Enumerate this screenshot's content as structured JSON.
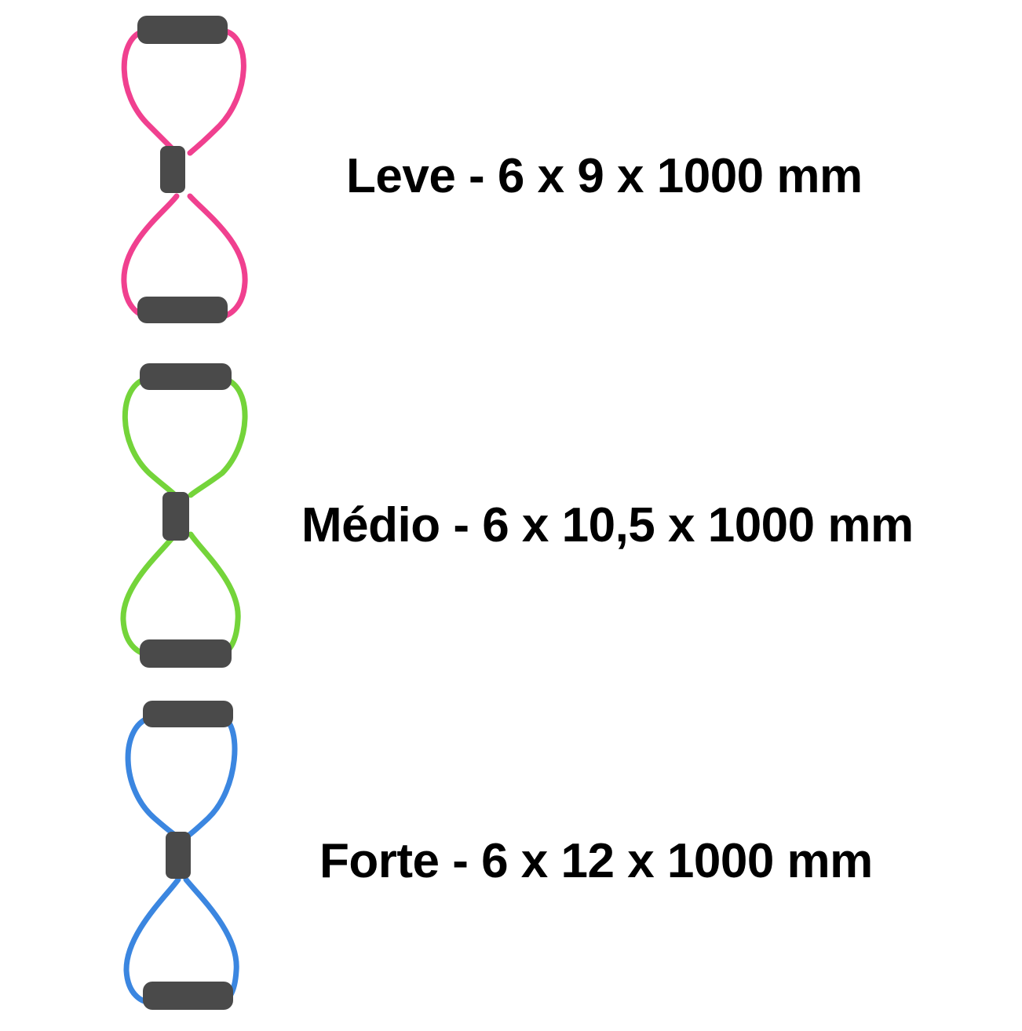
{
  "items": [
    {
      "label": "Leve - 6 x 9 x 1000 mm",
      "tube_color": "#f0408f",
      "icon": "figure-eight-resistance-band-icon"
    },
    {
      "label": "Médio - 6 x 10,5 x 1000 mm",
      "tube_color": "#74d43a",
      "icon": "figure-eight-resistance-band-icon"
    },
    {
      "label": "Forte - 6 x 12 x 1000 mm",
      "tube_color": "#3b86e0",
      "icon": "figure-eight-resistance-band-icon"
    }
  ],
  "foam_color": "#4a4a4a"
}
